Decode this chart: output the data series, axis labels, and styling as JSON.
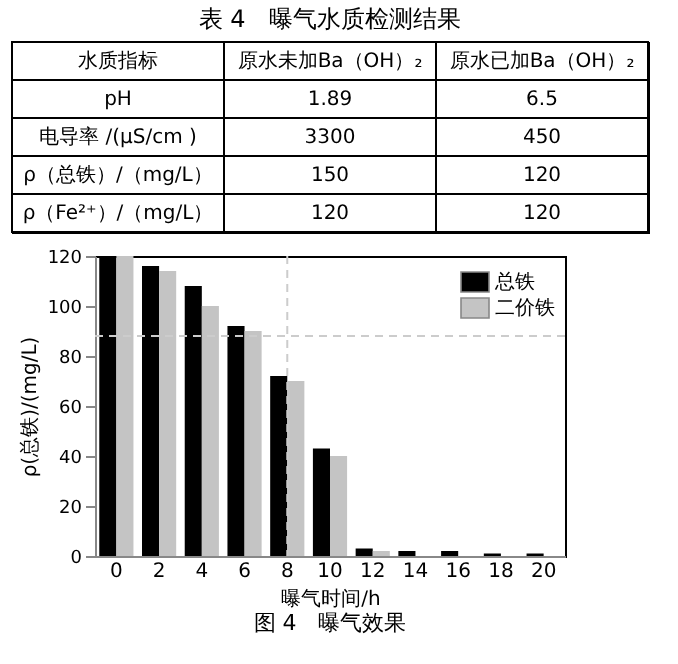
{
  "chart_data": [
    {
      "type": "other",
      "title": "表 4　曝气水质检测结果",
      "categories": [
        "水质指标",
        "原水未加Ba（OH）₂",
        "原水已加Ba（OH）₂"
      ],
      "annotations": [
        "pH",
        "1.89",
        "6.5",
        "电导率 /(μS/cm )",
        "3300",
        "450",
        "ρ（总铁）/（mg/L）",
        "150",
        "120",
        "ρ（Fe²⁺）/（mg/L）",
        "120",
        "120"
      ]
    },
    {
      "type": "bar",
      "xlabel": "曝气时间/h",
      "ylabel": "ρ(总铁)/(mg/L)",
      "categories": [
        "0",
        "2",
        "4",
        "6",
        "8",
        "10",
        "12",
        "14",
        "16",
        "18",
        "20"
      ],
      "series": [
        {
          "name": "总铁",
          "color": "#000000",
          "values": [
            120,
            116,
            108,
            92,
            72,
            43,
            3,
            2,
            2,
            1,
            1
          ]
        },
        {
          "name": "二价铁",
          "color": "#c4c4c4",
          "values": [
            120,
            114,
            100,
            90,
            70,
            40,
            2,
            null,
            null,
            null,
            null
          ]
        }
      ],
      "ylim": [
        0,
        120
      ],
      "yticks": [
        0,
        20,
        40,
        60,
        80,
        100,
        120
      ],
      "ref_lines": [
        {
          "axis": "y",
          "value": 88,
          "color": "#cccccc",
          "line_style": "dashed"
        },
        {
          "axis": "x",
          "value": "8",
          "color": "#cccccc",
          "line_style": "dashed"
        }
      ],
      "legend": "top right",
      "grid": false,
      "annotations": [
        "图 4　曝气效果"
      ]
    }
  ]
}
